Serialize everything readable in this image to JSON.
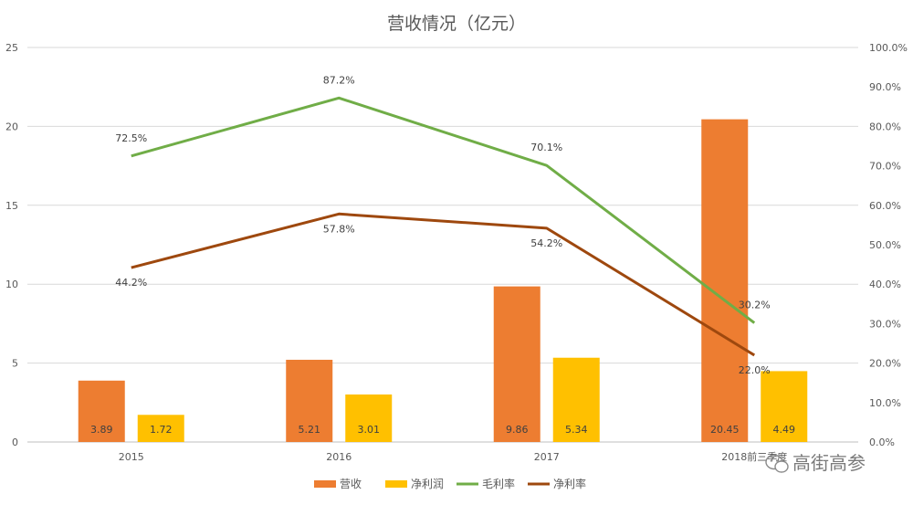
{
  "chart_data": {
    "type": "bar",
    "title": "营收情况（亿元）",
    "categories": [
      "2015",
      "2016",
      "2017",
      "2018前三季度"
    ],
    "y_left": {
      "min": 0,
      "max": 25,
      "ticks": [
        "0",
        "5",
        "10",
        "15",
        "20",
        "25"
      ]
    },
    "y_right": {
      "min": 0,
      "max": 100,
      "ticks": [
        "0.0%",
        "10.0%",
        "20.0%",
        "30.0%",
        "40.0%",
        "50.0%",
        "60.0%",
        "70.0%",
        "80.0%",
        "90.0%",
        "100.0%"
      ]
    },
    "series": [
      {
        "name": "营收",
        "kind": "bar",
        "axis": "left",
        "color": "#ED7D31",
        "values": [
          3.89,
          5.21,
          9.86,
          20.45
        ],
        "labels": [
          "3.89",
          "5.21",
          "9.86",
          "20.45"
        ]
      },
      {
        "name": "净利润",
        "kind": "bar",
        "axis": "left",
        "color": "#FFC000",
        "values": [
          1.72,
          3.01,
          5.34,
          4.49
        ],
        "labels": [
          "1.72",
          "3.01",
          "5.34",
          "4.49"
        ]
      },
      {
        "name": "毛利率",
        "kind": "line",
        "axis": "right",
        "color": "#70AD47",
        "values": [
          72.5,
          87.2,
          70.1,
          30.2
        ],
        "labels": [
          "72.5%",
          "87.2%",
          "70.1%",
          "30.2%"
        ]
      },
      {
        "name": "净利率",
        "kind": "line",
        "axis": "right",
        "color": "#9E480E",
        "values": [
          44.2,
          57.8,
          54.2,
          22.0
        ],
        "labels": [
          "44.2%",
          "57.8%",
          "54.2%",
          "22.0%"
        ]
      }
    ],
    "legend_position": "bottom",
    "gridlines": true
  },
  "watermark": {
    "text": "高街高参",
    "icon": "wechat-icon"
  }
}
